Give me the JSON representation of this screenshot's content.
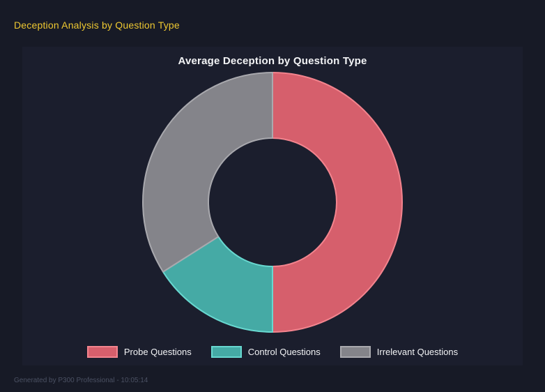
{
  "header": {
    "title": "Deception Analysis by Question Type"
  },
  "footer": {
    "text": "Generated by P300 Professional - 10:05:14"
  },
  "theme": {
    "page_bg": "#171a26",
    "panel_bg": "#1b1e2d",
    "header_yellow": "#eec831",
    "text_white": "#f2f3f5",
    "footer_text": "#4b5163"
  },
  "chart_data": {
    "type": "pie",
    "variant": "doughnut",
    "cutout_percent": 49,
    "title": "Average Deception by Question Type",
    "categories": [
      "Probe Questions",
      "Control Questions",
      "Irrelevant Questions"
    ],
    "values": [
      50,
      16,
      34
    ],
    "value_unit": "percent of circle (estimated from segment angles)",
    "start_angle_deg": 0,
    "direction": "clockwise",
    "legend_position": "bottom",
    "colors": [
      {
        "fill": "#d65f6c",
        "border": "#f3848e"
      },
      {
        "fill": "#45aaa5",
        "border": "#68d8d0"
      },
      {
        "fill": "#84848a",
        "border": "#a9a9ae"
      }
    ]
  }
}
